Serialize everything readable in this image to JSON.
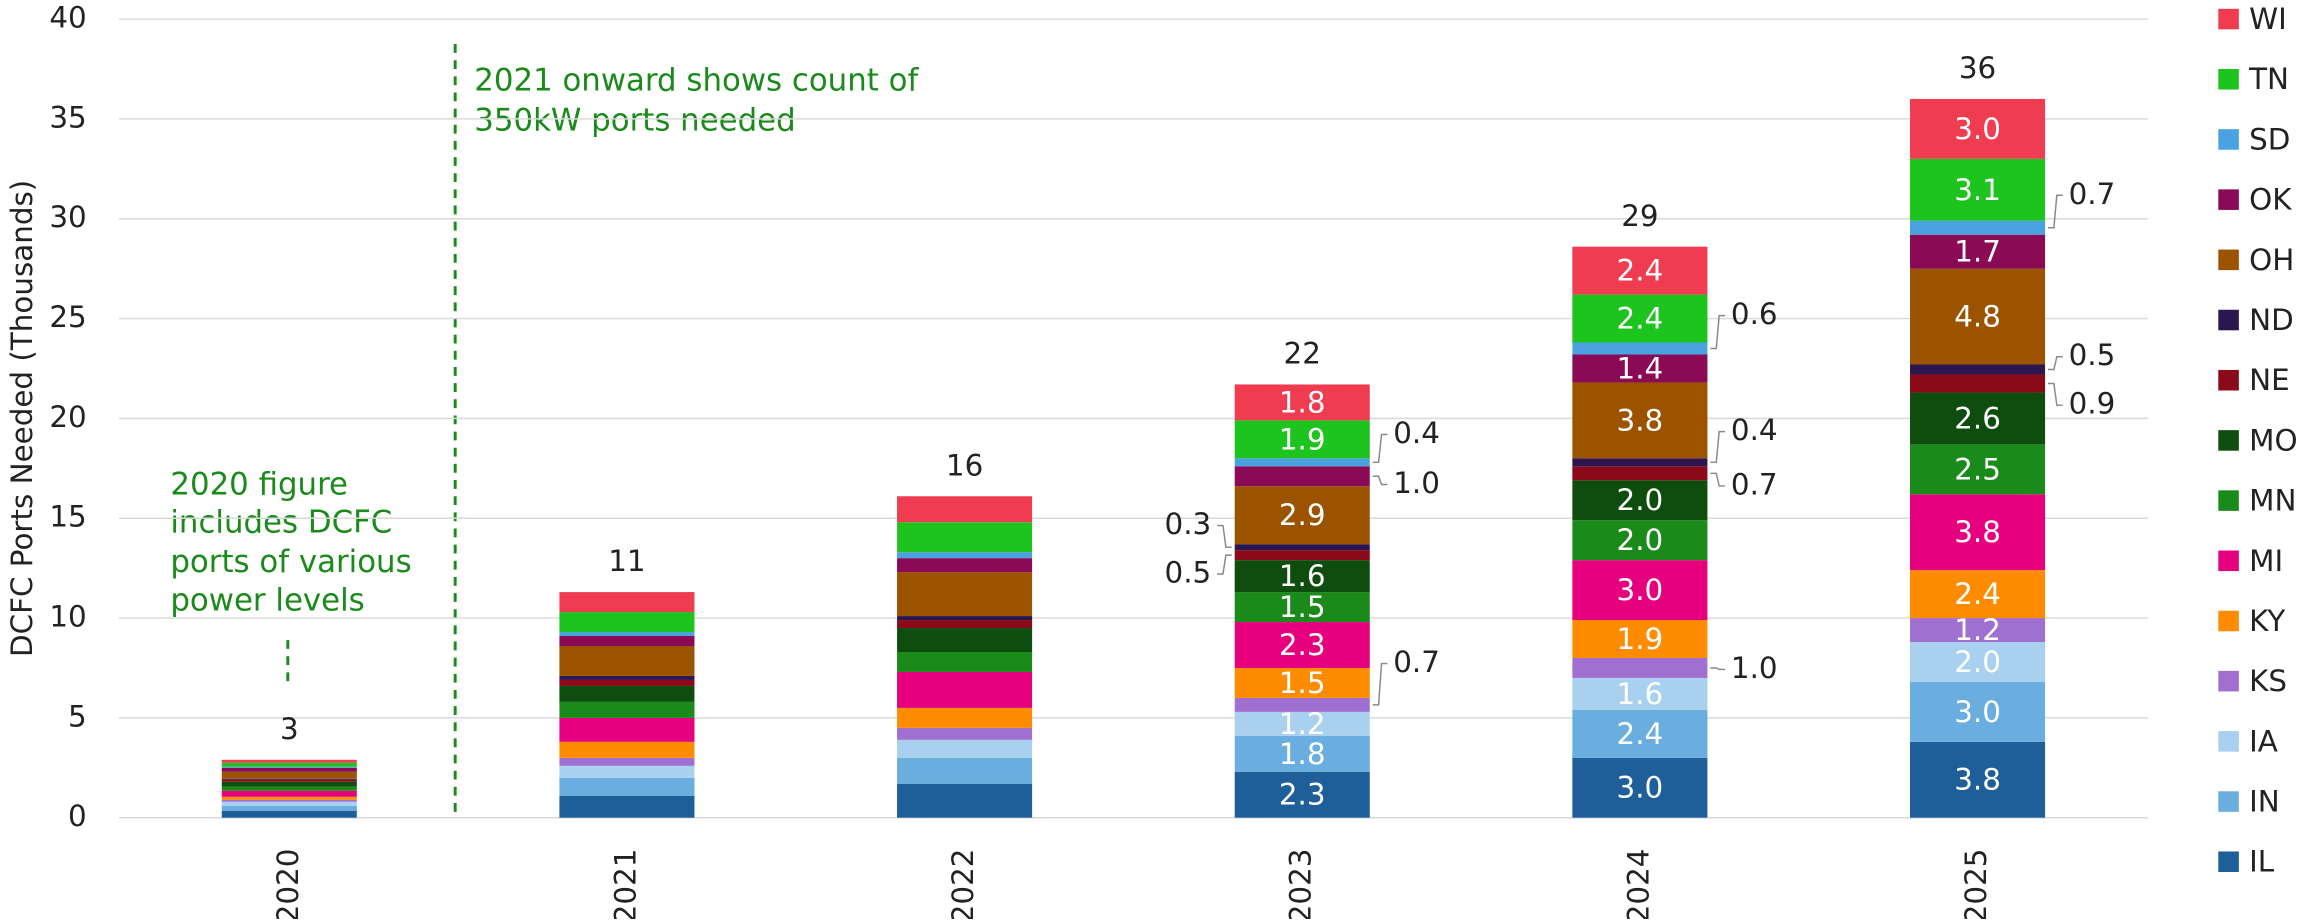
{
  "chart_data": {
    "type": "stacked_bar",
    "ylabel": "DCFC Ports Needed (Thousands)",
    "categories": [
      "2020",
      "2021",
      "2022",
      "2023",
      "2024",
      "2025"
    ],
    "ylim": [
      0,
      40
    ],
    "yticks": [
      0,
      5,
      10,
      15,
      20,
      25,
      30,
      35,
      40
    ],
    "grid": true,
    "total_labels": [
      "3",
      "11",
      "16",
      "22",
      "29",
      "36"
    ],
    "series": [
      {
        "name": "IL",
        "color": "#1f5f99",
        "values": [
          0.35,
          1.1,
          1.7,
          2.3,
          3.0,
          3.8
        ],
        "value_labels": [
          null,
          null,
          null,
          "2.3",
          "3.0",
          "3.8"
        ]
      },
      {
        "name": "IN",
        "color": "#6aaee0",
        "values": [
          0.25,
          0.9,
          1.3,
          1.8,
          2.4,
          3.0
        ],
        "value_labels": [
          null,
          null,
          null,
          "1.8",
          "2.4",
          "3.0"
        ]
      },
      {
        "name": "IA",
        "color": "#a9d0ee",
        "values": [
          0.2,
          0.6,
          0.9,
          1.2,
          1.6,
          2.0
        ],
        "value_labels": [
          null,
          null,
          null,
          "1.2",
          "1.6",
          "2.0"
        ]
      },
      {
        "name": "KS",
        "color": "#a070d0",
        "values": [
          0.1,
          0.4,
          0.6,
          0.7,
          1.0,
          1.2
        ],
        "value_labels": [
          null,
          null,
          null,
          "0.7",
          "1.0",
          "1.2"
        ]
      },
      {
        "name": "KY",
        "color": "#ff8c00",
        "values": [
          0.15,
          0.8,
          1.0,
          1.5,
          1.9,
          2.4
        ],
        "value_labels": [
          null,
          null,
          null,
          "1.5",
          "1.9",
          "2.4"
        ]
      },
      {
        "name": "MI",
        "color": "#e6007e",
        "values": [
          0.3,
          1.2,
          1.8,
          2.3,
          3.0,
          3.8
        ],
        "value_labels": [
          null,
          null,
          null,
          "2.3",
          "3.0",
          "3.8"
        ]
      },
      {
        "name": "MN",
        "color": "#1a8a1a",
        "values": [
          0.2,
          0.8,
          1.0,
          1.5,
          2.0,
          2.5
        ],
        "value_labels": [
          null,
          null,
          null,
          "1.5",
          "2.0",
          "2.5"
        ]
      },
      {
        "name": "MO",
        "color": "#0e4d0e",
        "values": [
          0.25,
          0.8,
          1.2,
          1.6,
          2.0,
          2.6
        ],
        "value_labels": [
          null,
          null,
          null,
          "1.6",
          "2.0",
          "2.6"
        ]
      },
      {
        "name": "NE",
        "color": "#8b0a1a",
        "values": [
          0.1,
          0.3,
          0.4,
          0.5,
          0.7,
          0.9
        ],
        "value_labels": [
          null,
          null,
          null,
          "0.5",
          "0.7",
          "0.9"
        ]
      },
      {
        "name": "ND",
        "color": "#2b1650",
        "values": [
          0.05,
          0.2,
          0.2,
          0.3,
          0.4,
          0.5
        ],
        "value_labels": [
          null,
          null,
          null,
          "0.3",
          "0.4",
          "0.5"
        ]
      },
      {
        "name": "OH",
        "color": "#9c5300",
        "values": [
          0.35,
          1.5,
          2.2,
          2.9,
          3.8,
          4.8
        ],
        "value_labels": [
          null,
          null,
          null,
          "2.9",
          "3.8",
          "4.8"
        ]
      },
      {
        "name": "OK",
        "color": "#8a0a55",
        "values": [
          0.2,
          0.5,
          0.7,
          1.0,
          1.4,
          1.7
        ],
        "value_labels": [
          null,
          null,
          null,
          "1.0",
          "1.4",
          "1.7"
        ]
      },
      {
        "name": "SD",
        "color": "#4aa3e0",
        "values": [
          0.05,
          0.2,
          0.3,
          0.4,
          0.6,
          0.7
        ],
        "value_labels": [
          null,
          null,
          null,
          "0.4",
          "0.6",
          "0.7"
        ]
      },
      {
        "name": "TN",
        "color": "#1ec41e",
        "values": [
          0.2,
          1.0,
          1.5,
          1.9,
          2.4,
          3.1
        ],
        "value_labels": [
          null,
          null,
          null,
          "1.9",
          "2.4",
          "3.1"
        ]
      },
      {
        "name": "WI",
        "color": "#f03c50",
        "values": [
          0.15,
          1.0,
          1.3,
          1.8,
          2.4,
          3.0
        ],
        "value_labels": [
          null,
          null,
          null,
          "1.8",
          "2.4",
          "3.0"
        ]
      }
    ],
    "annotations": [
      {
        "lines": [
          "2021 onward shows count of",
          "350kW ports needed"
        ]
      },
      {
        "lines": [
          "2020 figure",
          "includes DCFC",
          "ports of various",
          "power levels"
        ]
      }
    ]
  }
}
